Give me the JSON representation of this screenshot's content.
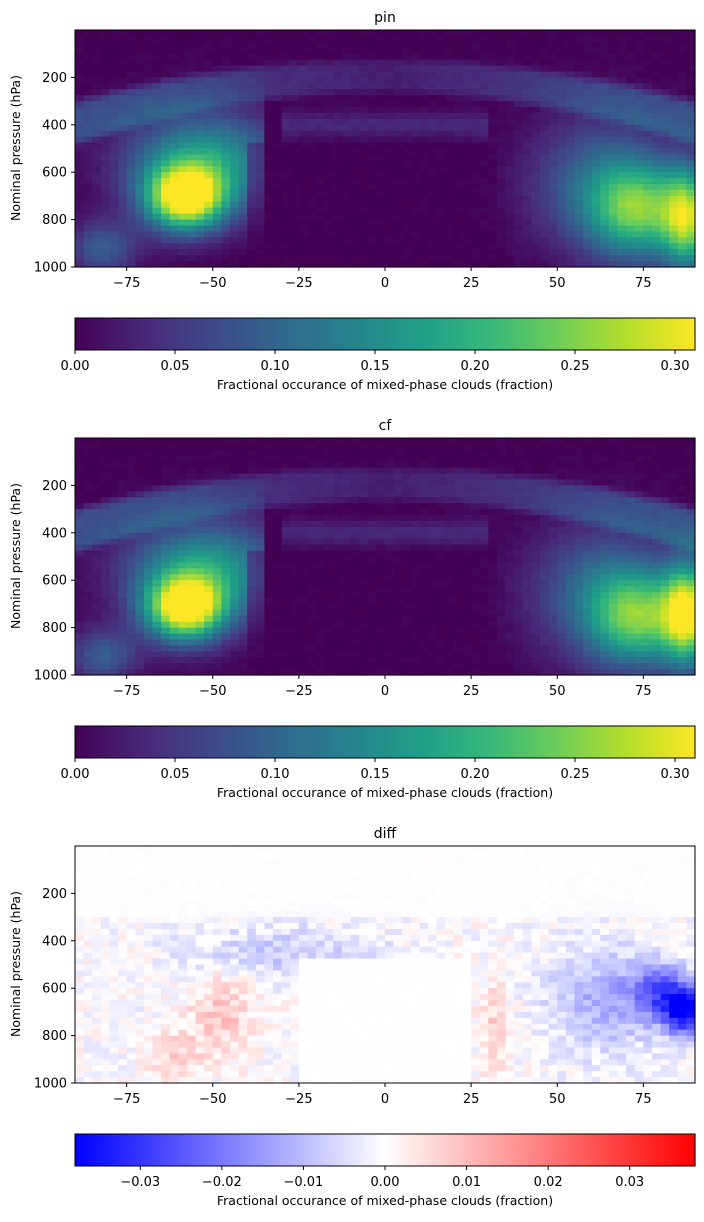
{
  "chart_data": [
    {
      "type": "heatmap",
      "title": "pin",
      "ylabel": "Nominal pressure (hPa)",
      "xlabel": "",
      "xlim": [
        -90,
        90
      ],
      "ylim": [
        1000,
        0
      ],
      "xticks": [
        "−75",
        "−50",
        "−25",
        "0",
        "25",
        "50",
        "75"
      ],
      "xtick_values": [
        -75,
        -50,
        -25,
        0,
        25,
        50,
        75
      ],
      "yticks": [
        "200",
        "400",
        "600",
        "800",
        "1000"
      ],
      "ytick_values": [
        200,
        400,
        600,
        800,
        1000
      ],
      "colormap": "viridis",
      "colorbar": {
        "label": "Fractional occurance of mixed-phase clouds (fraction)",
        "range": [
          0,
          0.31
        ],
        "ticks": [
          "0.00",
          "0.05",
          "0.10",
          "0.15",
          "0.20",
          "0.25",
          "0.30"
        ],
        "tick_values": [
          0,
          0.05,
          0.1,
          0.15,
          0.2,
          0.25,
          0.3
        ]
      },
      "features": [
        {
          "lat": -58,
          "pressure": 710,
          "peak": 0.31
        },
        {
          "lat": 72,
          "pressure": 760,
          "peak": 0.21
        },
        {
          "lat": 88,
          "pressure": 800,
          "peak": 0.24
        }
      ]
    },
    {
      "type": "heatmap",
      "title": "cf",
      "ylabel": "Nominal pressure (hPa)",
      "xlabel": "",
      "xlim": [
        -90,
        90
      ],
      "ylim": [
        1000,
        0
      ],
      "xticks": [
        "−75",
        "−50",
        "−25",
        "0",
        "25",
        "50",
        "75"
      ],
      "xtick_values": [
        -75,
        -50,
        -25,
        0,
        25,
        50,
        75
      ],
      "yticks": [
        "200",
        "400",
        "600",
        "800",
        "1000"
      ],
      "ytick_values": [
        200,
        400,
        600,
        800,
        1000
      ],
      "colormap": "viridis",
      "colorbar": {
        "label": "Fractional occurance of mixed-phase clouds (fraction)",
        "range": [
          0,
          0.31
        ],
        "ticks": [
          "0.00",
          "0.05",
          "0.10",
          "0.15",
          "0.20",
          "0.25",
          "0.30"
        ],
        "tick_values": [
          0,
          0.05,
          0.1,
          0.15,
          0.2,
          0.25,
          0.3
        ]
      },
      "features": [
        {
          "lat": -58,
          "pressure": 720,
          "peak": 0.3
        },
        {
          "lat": 72,
          "pressure": 760,
          "peak": 0.2
        },
        {
          "lat": 88,
          "pressure": 740,
          "peak": 0.26
        }
      ]
    },
    {
      "type": "heatmap",
      "title": "diff",
      "ylabel": "Nominal pressure (hPa)",
      "xlabel": "",
      "xlim": [
        -90,
        90
      ],
      "ylim": [
        1000,
        0
      ],
      "xticks": [
        "−75",
        "−50",
        "−25",
        "0",
        "25",
        "50",
        "75"
      ],
      "xtick_values": [
        -75,
        -50,
        -25,
        0,
        25,
        50,
        75
      ],
      "yticks": [
        "200",
        "400",
        "600",
        "800",
        "1000"
      ],
      "ytick_values": [
        200,
        400,
        600,
        800,
        1000
      ],
      "colormap": "bwr",
      "colorbar": {
        "label": "Fractional occurance of mixed-phase clouds (fraction)",
        "range": [
          -0.038,
          0.038
        ],
        "ticks": [
          "−0.03",
          "−0.02",
          "−0.01",
          "0.00",
          "0.01",
          "0.02",
          "0.03"
        ],
        "tick_values": [
          -0.03,
          -0.02,
          -0.01,
          0,
          0.01,
          0.02,
          0.03
        ]
      },
      "features": [
        {
          "lat": 86,
          "pressure": 700,
          "value": -0.038
        },
        {
          "lat": -46,
          "pressure": 700,
          "value": 0.008
        },
        {
          "lat": 32,
          "pressure": 800,
          "value": 0.007
        }
      ]
    }
  ]
}
